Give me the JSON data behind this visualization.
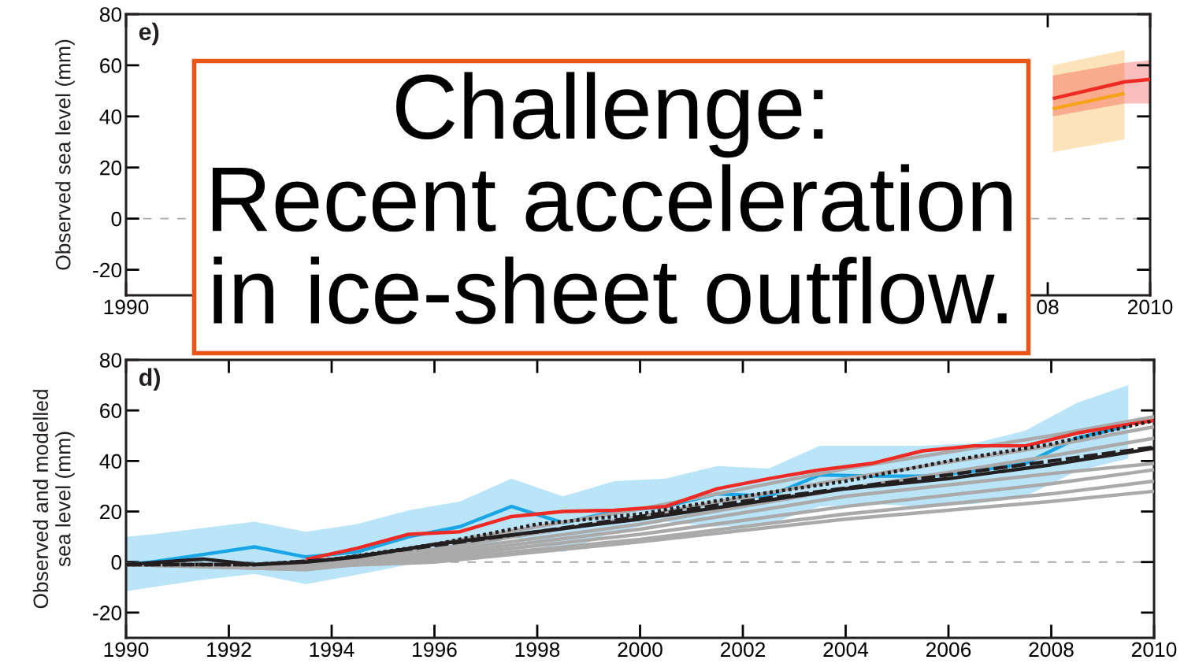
{
  "chart_data": [
    {
      "type": "line",
      "ylabel": "Observed sea level (mm)",
      "xlim": [
        1990,
        2010
      ],
      "ylim": [
        -30,
        80
      ],
      "xticks": [
        1990,
        {
          "value": 2008,
          "label": "08"
        },
        2010
      ],
      "yticks": [
        -20,
        0,
        20,
        40,
        60,
        80
      ],
      "grid": false,
      "legend": false,
      "ref_lines": [
        {
          "axis": "y",
          "value": 0,
          "color": "#aaaaaa",
          "line_style": "dashed"
        }
      ],
      "annotations": [
        "e)",
        "Challenge:\nRecent acceleration\nin ice-sheet outflow."
      ],
      "series": [
        {
          "color": "#f7a21b",
          "x": [
            2008.1,
            2009.5
          ],
          "values": [
            43,
            49
          ],
          "lower": [
            26,
            31
          ],
          "upper": [
            60,
            66
          ]
        },
        {
          "color": "#ee2a24",
          "x": [
            2008.1,
            2009.5,
            2010
          ],
          "values": [
            47,
            53.5,
            54.5
          ],
          "lower": [
            40,
            45,
            45
          ],
          "upper": [
            56,
            61,
            62
          ]
        }
      ]
    },
    {
      "type": "line",
      "ylabel": "Observed and modelled\nsea level (mm)",
      "xlim": [
        1990,
        2010
      ],
      "ylim": [
        -30,
        80
      ],
      "xticks": [
        1990,
        1992,
        1994,
        1996,
        1998,
        2000,
        2002,
        2004,
        2006,
        2008,
        2010
      ],
      "yticks": [
        -20,
        0,
        20,
        40,
        60,
        80
      ],
      "grid": false,
      "legend": false,
      "ref_lines": [
        {
          "axis": "y",
          "value": 0,
          "color": "#aaaaaa",
          "line_style": "dashed"
        }
      ],
      "annotations": [
        "d)"
      ],
      "series": [
        {
          "color": "#1aa6e6",
          "x": [
            1990,
            1990.5,
            1991.5,
            1992.5,
            1993.5,
            1994.5,
            1995.5,
            1996.5,
            1997.5,
            1998.5,
            1999.5,
            2000.5,
            2001.5,
            2002.5,
            2003.5,
            2004.5,
            2005.5,
            2006.5,
            2007.5,
            2008.5,
            2009.5
          ],
          "values": [
            -1,
            0,
            3,
            6,
            2,
            4,
            10,
            14,
            22,
            15.5,
            20,
            22,
            27,
            26,
            34.5,
            34,
            34,
            36,
            39,
            49,
            54
          ],
          "lower": [
            -11.5,
            -10,
            -7,
            -4.7,
            -8.7,
            -5,
            -1,
            2,
            10,
            4,
            12,
            16,
            14,
            15,
            22,
            23,
            22,
            23,
            26,
            36,
            41
          ],
          "upper": [
            10,
            11,
            13.5,
            16,
            12,
            15,
            20.5,
            24,
            33,
            26,
            32,
            33,
            38,
            37,
            46,
            46,
            46,
            47,
            52,
            63,
            70
          ]
        },
        {
          "color": "#aaaaaa",
          "x": [
            1990,
            1993.5,
            1996,
            2000,
            2004,
            2008,
            2010
          ],
          "values": [
            -1,
            -1,
            7,
            21,
            37,
            50,
            57.5
          ]
        },
        {
          "color": "#aaaaaa",
          "x": [
            1990,
            1993.5,
            1996,
            2000,
            2004,
            2008,
            2010
          ],
          "values": [
            -1,
            -1,
            5,
            18,
            33,
            46,
            53.5
          ]
        },
        {
          "color": "#aaaaaa",
          "x": [
            1990,
            1993.5,
            1996,
            2000,
            2004,
            2008,
            2010
          ],
          "values": [
            -1,
            -2,
            4,
            15,
            29,
            42,
            49
          ]
        },
        {
          "color": "#aaaaaa",
          "x": [
            1990,
            1993.5,
            1996,
            2000,
            2004,
            2008,
            2010
          ],
          "values": [
            -1,
            -3,
            3,
            13,
            26,
            35,
            39
          ]
        },
        {
          "color": "#aaaaaa",
          "x": [
            1990,
            1993.5,
            1996,
            2000,
            2004,
            2008,
            2010
          ],
          "values": [
            -1,
            -3,
            2,
            11,
            22,
            31,
            36.5
          ]
        },
        {
          "color": "#aaaaaa",
          "x": [
            1990,
            1993.5,
            1996,
            2000,
            2004,
            2008,
            2010
          ],
          "values": [
            -1,
            -2,
            1,
            9,
            19,
            27,
            32
          ]
        },
        {
          "color": "#aaaaaa",
          "x": [
            1990,
            1993.5,
            1996,
            2000,
            2004,
            2008,
            2010
          ],
          "values": [
            -1,
            -2,
            0,
            8,
            17,
            24,
            28
          ]
        },
        {
          "color": "#ee2a24",
          "x": [
            1993.5,
            1994.5,
            1995.5,
            1996.5,
            1997.5,
            1998.5,
            1999.5,
            2000.5,
            2001.5,
            2002.5,
            2003.5,
            2004.5,
            2005.5,
            2006.5,
            2007.5,
            2008.5,
            2009.5,
            2010
          ],
          "values": [
            1,
            5.5,
            11,
            12,
            18,
            20,
            20.5,
            22,
            29,
            33,
            36.5,
            39,
            44,
            46,
            46,
            51,
            54.5,
            56
          ]
        },
        {
          "color": "#231f20",
          "x": [
            1990,
            1991.5,
            1992.5,
            1993.5,
            1994.5,
            1996,
            1998,
            2000,
            2002,
            2004,
            2006,
            2008,
            2010
          ],
          "values": [
            -1,
            1.2,
            -1,
            0,
            2,
            7,
            12,
            17,
            23,
            29,
            33,
            38.5,
            45
          ]
        },
        {
          "color": "#231f20",
          "line_style": "dashed",
          "x": [
            1990,
            1992.5,
            1994,
            1998,
            2002,
            2006,
            2010
          ],
          "values": [
            -1,
            -1,
            1,
            12,
            24,
            34.5,
            45.5
          ]
        },
        {
          "color": "#231f20",
          "line_style": "dotted",
          "x": [
            1990,
            1992.5,
            1994,
            1996,
            1998,
            2000,
            2002,
            2004,
            2006,
            2008,
            2010
          ],
          "values": [
            -1,
            -1,
            1,
            7,
            15,
            19,
            26,
            32,
            40,
            46.7,
            56
          ]
        }
      ]
    }
  ]
}
